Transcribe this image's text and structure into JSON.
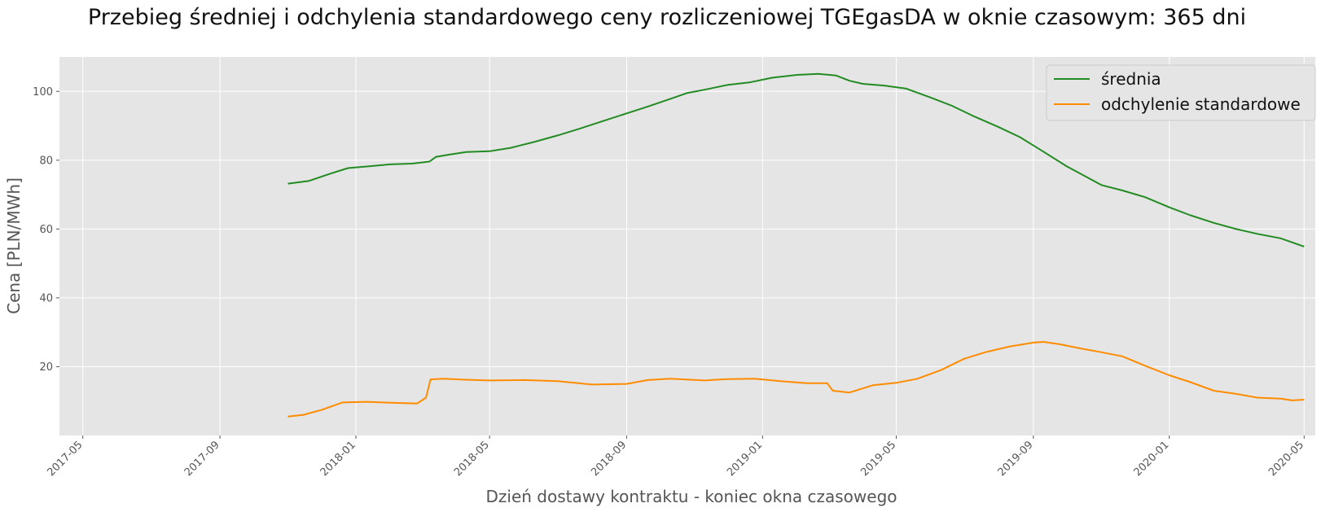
{
  "chart_data": {
    "type": "line",
    "title": "Przebieg średniej i odchylenia standardowego ceny rozliczeniowej TGEgasDA w oknie czasowym: 365 dni",
    "xlabel": "Dzień dostawy kontraktu - koniec okna czasowego",
    "ylabel": "Cena [PLN/MWh]",
    "x_range": [
      "2017-04-10",
      "2020-05-11"
    ],
    "ylim": [
      0,
      110
    ],
    "x_ticks": [
      "2017-05",
      "2017-09",
      "2018-01",
      "2018-05",
      "2018-09",
      "2019-01",
      "2019-05",
      "2019-09",
      "2020-01",
      "2020-05"
    ],
    "y_ticks": [
      20,
      40,
      60,
      80,
      100
    ],
    "grid": true,
    "legend_position": "top-right",
    "series": [
      {
        "name": "średnia",
        "color": "#228B22",
        "points": [
          [
            "2017-11-01",
            73.2
          ],
          [
            "2017-11-20",
            74.0
          ],
          [
            "2017-12-10",
            76.2
          ],
          [
            "2017-12-25",
            77.7
          ],
          [
            "2018-01-15",
            78.3
          ],
          [
            "2018-02-01",
            78.8
          ],
          [
            "2018-02-20",
            79.0
          ],
          [
            "2018-03-08",
            79.6
          ],
          [
            "2018-03-14",
            81.0
          ],
          [
            "2018-03-25",
            81.6
          ],
          [
            "2018-04-10",
            82.4
          ],
          [
            "2018-05-01",
            82.6
          ],
          [
            "2018-05-20",
            83.6
          ],
          [
            "2018-06-10",
            85.3
          ],
          [
            "2018-07-01",
            87.2
          ],
          [
            "2018-07-20",
            89.1
          ],
          [
            "2018-08-10",
            91.3
          ],
          [
            "2018-09-01",
            93.6
          ],
          [
            "2018-09-20",
            95.6
          ],
          [
            "2018-10-10",
            97.8
          ],
          [
            "2018-10-25",
            99.5
          ],
          [
            "2018-11-10",
            100.5
          ],
          [
            "2018-12-01",
            101.9
          ],
          [
            "2018-12-20",
            102.6
          ],
          [
            "2019-01-10",
            104.0
          ],
          [
            "2019-02-01",
            104.8
          ],
          [
            "2019-02-20",
            105.1
          ],
          [
            "2019-03-08",
            104.6
          ],
          [
            "2019-03-20",
            103.1
          ],
          [
            "2019-04-01",
            102.2
          ],
          [
            "2019-04-20",
            101.7
          ],
          [
            "2019-05-10",
            100.8
          ],
          [
            "2019-06-01",
            98.2
          ],
          [
            "2019-06-20",
            95.8
          ],
          [
            "2019-07-10",
            92.7
          ],
          [
            "2019-08-01",
            89.6
          ],
          [
            "2019-08-20",
            86.7
          ],
          [
            "2019-09-10",
            82.5
          ],
          [
            "2019-10-01",
            78.2
          ],
          [
            "2019-10-20",
            74.9
          ],
          [
            "2019-11-01",
            72.8
          ],
          [
            "2019-11-20",
            71.2
          ],
          [
            "2019-12-10",
            69.3
          ],
          [
            "2020-01-01",
            66.3
          ],
          [
            "2020-01-20",
            64.0
          ],
          [
            "2020-02-10",
            61.8
          ],
          [
            "2020-03-01",
            60.0
          ],
          [
            "2020-03-20",
            58.6
          ],
          [
            "2020-04-10",
            57.3
          ],
          [
            "2020-05-01",
            54.9
          ]
        ]
      },
      {
        "name": "odchylenie standardowe",
        "color": "#FF8C00",
        "points": [
          [
            "2017-11-01",
            5.5
          ],
          [
            "2017-11-15",
            6.0
          ],
          [
            "2017-12-01",
            7.4
          ],
          [
            "2017-12-20",
            9.6
          ],
          [
            "2018-01-10",
            9.8
          ],
          [
            "2018-02-01",
            9.5
          ],
          [
            "2018-02-25",
            9.3
          ],
          [
            "2018-03-05",
            11.0
          ],
          [
            "2018-03-09",
            16.3
          ],
          [
            "2018-03-20",
            16.5
          ],
          [
            "2018-04-10",
            16.2
          ],
          [
            "2018-05-01",
            16.0
          ],
          [
            "2018-06-01",
            16.1
          ],
          [
            "2018-07-01",
            15.8
          ],
          [
            "2018-08-01",
            14.8
          ],
          [
            "2018-09-01",
            15.0
          ],
          [
            "2018-09-20",
            16.1
          ],
          [
            "2018-10-10",
            16.5
          ],
          [
            "2018-11-10",
            16.0
          ],
          [
            "2018-12-01",
            16.4
          ],
          [
            "2018-12-25",
            16.5
          ],
          [
            "2019-01-20",
            15.7
          ],
          [
            "2019-02-10",
            15.2
          ],
          [
            "2019-02-28",
            15.2
          ],
          [
            "2019-03-05",
            13.0
          ],
          [
            "2019-03-20",
            12.5
          ],
          [
            "2019-04-10",
            14.6
          ],
          [
            "2019-05-01",
            15.3
          ],
          [
            "2019-05-20",
            16.5
          ],
          [
            "2019-06-10",
            19.0
          ],
          [
            "2019-07-01",
            22.3
          ],
          [
            "2019-07-20",
            24.2
          ],
          [
            "2019-08-10",
            25.8
          ],
          [
            "2019-09-01",
            27.0
          ],
          [
            "2019-09-10",
            27.2
          ],
          [
            "2019-09-25",
            26.5
          ],
          [
            "2019-10-15",
            25.2
          ],
          [
            "2019-11-01",
            24.2
          ],
          [
            "2019-11-20",
            23.0
          ],
          [
            "2019-12-10",
            20.3
          ],
          [
            "2020-01-01",
            17.5
          ],
          [
            "2020-01-20",
            15.5
          ],
          [
            "2020-02-10",
            13.0
          ],
          [
            "2020-03-01",
            12.1
          ],
          [
            "2020-03-20",
            11.0
          ],
          [
            "2020-04-10",
            10.7
          ],
          [
            "2020-04-20",
            10.2
          ],
          [
            "2020-05-01",
            10.4
          ]
        ]
      }
    ]
  }
}
